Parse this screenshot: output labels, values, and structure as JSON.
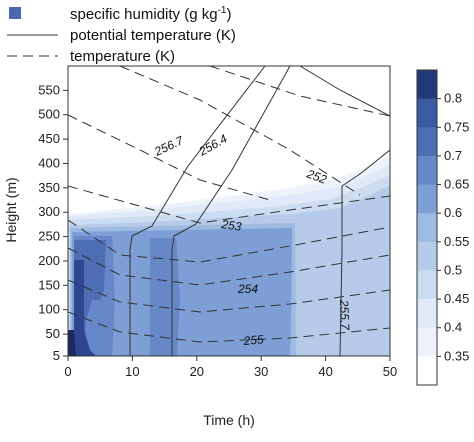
{
  "chart_data": {
    "type": "contour",
    "xlabel": "Time (h)",
    "ylabel": "Height (m)",
    "xlim": [
      0,
      50
    ],
    "ylim": [
      5,
      600
    ],
    "xticks": [
      "0",
      "10",
      "20",
      "30",
      "40",
      "50"
    ],
    "yticks": [
      "5",
      "50",
      "100",
      "150",
      "200",
      "250",
      "300",
      "350",
      "400",
      "450",
      "500",
      "550"
    ],
    "legend": {
      "placement": "top-left",
      "entries": [
        {
          "label": "specific humidity (g kg",
          "superscript": "-1",
          "suffix": ")",
          "style": "fill"
        },
        {
          "label": "potential temperature (K)",
          "style": "solid"
        },
        {
          "label": "temperature (K)",
          "style": "dashed"
        }
      ]
    },
    "colorbar": {
      "levels": [
        0.8,
        0.75,
        0.7,
        0.65,
        0.6,
        0.55,
        0.5,
        0.45,
        0.4,
        0.35
      ],
      "labels": [
        "0.8",
        "0.75",
        "0.7",
        "0.65",
        "0.6",
        "0.55",
        "0.5",
        "0.45",
        "0.4",
        "0.35"
      ]
    },
    "contour_labels": {
      "potential_temperature": [
        "256.7",
        "256.4",
        "252",
        "255.7"
      ],
      "temperature": [
        "253",
        "254",
        "255"
      ]
    }
  }
}
